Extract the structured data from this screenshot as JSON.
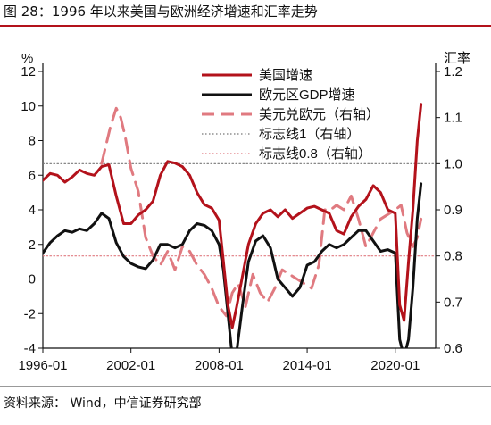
{
  "figure": {
    "title": "图 28：1996 年以来美国与欧洲经济增速和汇率走势",
    "source": "资料来源：  Wind，中信证券研究部"
  },
  "colors": {
    "us_growth": "#b3121b",
    "euro_gdp": "#111111",
    "usd_eur": "#e07a80",
    "ref1": "#777777",
    "ref08": "#e07a80",
    "axis": "#111111"
  },
  "chart_data": {
    "type": "line",
    "ylabel_left": "%",
    "ylabel_right": "汇率",
    "ylim_left": [
      -4,
      12
    ],
    "ylim_right": [
      0.6,
      1.2
    ],
    "yticks_left": [
      "-4",
      "-2",
      "0",
      "2",
      "4",
      "6",
      "8",
      "10",
      "12"
    ],
    "yticks_right": [
      "0.6",
      "0.7",
      "0.8",
      "0.9",
      "1.0",
      "1.1",
      "1.2"
    ],
    "xlim": [
      1996.0,
      2022.75
    ],
    "xticks": [
      {
        "x": 1996.0,
        "label": "1996-01"
      },
      {
        "x": 2002.0,
        "label": "2002-01"
      },
      {
        "x": 2008.0,
        "label": "2008-01"
      },
      {
        "x": 2014.0,
        "label": "2014-01"
      },
      {
        "x": 2020.0,
        "label": "2020-01"
      }
    ],
    "legend_position": "top-right",
    "series": [
      {
        "name": "美国增速",
        "axis": "left",
        "style": "solid-thick",
        "color_key": "us_growth",
        "points": [
          [
            1996.0,
            5.7
          ],
          [
            1996.5,
            6.1
          ],
          [
            1997.0,
            6.0
          ],
          [
            1997.5,
            5.6
          ],
          [
            1998.0,
            5.9
          ],
          [
            1998.5,
            6.3
          ],
          [
            1999.0,
            6.1
          ],
          [
            1999.5,
            6.0
          ],
          [
            2000.0,
            6.5
          ],
          [
            2000.5,
            6.6
          ],
          [
            2001.0,
            4.8
          ],
          [
            2001.5,
            3.2
          ],
          [
            2002.0,
            3.2
          ],
          [
            2002.5,
            3.7
          ],
          [
            2003.0,
            4.0
          ],
          [
            2003.5,
            4.5
          ],
          [
            2004.0,
            6.0
          ],
          [
            2004.5,
            6.8
          ],
          [
            2005.0,
            6.7
          ],
          [
            2005.5,
            6.5
          ],
          [
            2006.0,
            6.0
          ],
          [
            2006.5,
            5.0
          ],
          [
            2007.0,
            4.3
          ],
          [
            2007.5,
            4.1
          ],
          [
            2008.0,
            3.4
          ],
          [
            2008.3,
            1.0
          ],
          [
            2008.6,
            -1.5
          ],
          [
            2008.9,
            -2.8
          ],
          [
            2009.2,
            -1.6
          ],
          [
            2009.6,
            0.2
          ],
          [
            2010.0,
            2.0
          ],
          [
            2010.5,
            3.2
          ],
          [
            2011.0,
            3.8
          ],
          [
            2011.5,
            4.0
          ],
          [
            2012.0,
            3.6
          ],
          [
            2012.5,
            4.0
          ],
          [
            2013.0,
            3.5
          ],
          [
            2013.5,
            3.8
          ],
          [
            2014.0,
            4.1
          ],
          [
            2014.5,
            4.2
          ],
          [
            2015.0,
            4.0
          ],
          [
            2015.5,
            3.8
          ],
          [
            2016.0,
            2.8
          ],
          [
            2016.5,
            2.6
          ],
          [
            2017.0,
            3.6
          ],
          [
            2017.5,
            4.2
          ],
          [
            2018.0,
            4.6
          ],
          [
            2018.5,
            5.4
          ],
          [
            2019.0,
            5.0
          ],
          [
            2019.5,
            4.0
          ],
          [
            2020.0,
            3.8
          ],
          [
            2020.3,
            -1.5
          ],
          [
            2020.6,
            -2.4
          ],
          [
            2020.9,
            1.0
          ],
          [
            2021.2,
            4.0
          ],
          [
            2021.5,
            8.0
          ],
          [
            2021.75,
            10.1
          ]
        ]
      },
      {
        "name": "欧元区GDP增速",
        "axis": "left",
        "style": "solid-thick",
        "color_key": "euro_gdp",
        "points": [
          [
            1996.0,
            1.5
          ],
          [
            1996.5,
            2.1
          ],
          [
            1997.0,
            2.5
          ],
          [
            1997.5,
            2.8
          ],
          [
            1998.0,
            2.7
          ],
          [
            1998.5,
            2.9
          ],
          [
            1999.0,
            2.8
          ],
          [
            1999.5,
            3.2
          ],
          [
            2000.0,
            3.8
          ],
          [
            2000.5,
            3.5
          ],
          [
            2001.0,
            2.1
          ],
          [
            2001.5,
            1.3
          ],
          [
            2002.0,
            0.9
          ],
          [
            2002.5,
            0.7
          ],
          [
            2003.0,
            0.6
          ],
          [
            2003.5,
            1.1
          ],
          [
            2004.0,
            2.0
          ],
          [
            2004.5,
            2.0
          ],
          [
            2005.0,
            1.8
          ],
          [
            2005.5,
            2.0
          ],
          [
            2006.0,
            2.8
          ],
          [
            2006.5,
            3.2
          ],
          [
            2007.0,
            3.1
          ],
          [
            2007.5,
            2.8
          ],
          [
            2008.0,
            2.0
          ],
          [
            2008.3,
            0.5
          ],
          [
            2008.6,
            -2.0
          ],
          [
            2008.9,
            -4.5
          ],
          [
            2009.2,
            -4.2
          ],
          [
            2009.6,
            -1.5
          ],
          [
            2010.0,
            1.0
          ],
          [
            2010.5,
            2.2
          ],
          [
            2011.0,
            2.5
          ],
          [
            2011.5,
            1.8
          ],
          [
            2012.0,
            0.0
          ],
          [
            2012.5,
            -0.5
          ],
          [
            2013.0,
            -1.0
          ],
          [
            2013.5,
            -0.5
          ],
          [
            2014.0,
            0.8
          ],
          [
            2014.5,
            1.0
          ],
          [
            2015.0,
            1.6
          ],
          [
            2015.5,
            2.0
          ],
          [
            2016.0,
            1.8
          ],
          [
            2016.5,
            2.0
          ],
          [
            2017.0,
            2.4
          ],
          [
            2017.5,
            2.8
          ],
          [
            2018.0,
            2.8
          ],
          [
            2018.5,
            2.2
          ],
          [
            2019.0,
            1.6
          ],
          [
            2019.5,
            1.7
          ],
          [
            2020.0,
            1.5
          ],
          [
            2020.3,
            -3.5
          ],
          [
            2020.6,
            -4.5
          ],
          [
            2020.9,
            -3.5
          ],
          [
            2021.2,
            -0.5
          ],
          [
            2021.5,
            3.5
          ],
          [
            2021.75,
            5.5
          ]
        ]
      },
      {
        "name": "美元兑欧元（右轴）",
        "axis": "right",
        "style": "dashed-thick",
        "color_key": "usd_eur",
        "points": [
          [
            2000.0,
            1.0
          ],
          [
            2000.6,
            1.08
          ],
          [
            2001.0,
            1.12
          ],
          [
            2001.3,
            1.1
          ],
          [
            2001.6,
            1.06
          ],
          [
            2002.0,
            0.99
          ],
          [
            2002.5,
            0.94
          ],
          [
            2003.0,
            0.84
          ],
          [
            2003.5,
            0.8
          ],
          [
            2004.0,
            0.78
          ],
          [
            2004.5,
            0.81
          ],
          [
            2005.0,
            0.77
          ],
          [
            2005.5,
            0.82
          ],
          [
            2006.0,
            0.81
          ],
          [
            2006.5,
            0.78
          ],
          [
            2007.0,
            0.76
          ],
          [
            2007.5,
            0.73
          ],
          [
            2008.0,
            0.69
          ],
          [
            2008.5,
            0.67
          ],
          [
            2008.9,
            0.72
          ],
          [
            2009.3,
            0.74
          ],
          [
            2009.8,
            0.69
          ],
          [
            2010.3,
            0.76
          ],
          [
            2010.8,
            0.72
          ],
          [
            2011.3,
            0.7
          ],
          [
            2011.8,
            0.73
          ],
          [
            2012.3,
            0.77
          ],
          [
            2012.8,
            0.76
          ],
          [
            2013.3,
            0.75
          ],
          [
            2013.8,
            0.74
          ],
          [
            2014.3,
            0.73
          ],
          [
            2014.8,
            0.78
          ],
          [
            2015.2,
            0.9
          ],
          [
            2015.6,
            0.9
          ],
          [
            2016.0,
            0.91
          ],
          [
            2016.5,
            0.9
          ],
          [
            2017.0,
            0.93
          ],
          [
            2017.5,
            0.88
          ],
          [
            2018.0,
            0.82
          ],
          [
            2018.5,
            0.85
          ],
          [
            2019.0,
            0.88
          ],
          [
            2019.5,
            0.89
          ],
          [
            2020.0,
            0.9
          ],
          [
            2020.4,
            0.91
          ],
          [
            2020.8,
            0.85
          ],
          [
            2021.2,
            0.82
          ],
          [
            2021.5,
            0.84
          ],
          [
            2021.75,
            0.88
          ]
        ]
      },
      {
        "name": "标志线1（右轴）",
        "axis": "right",
        "style": "dotted",
        "color_key": "ref1",
        "points": [
          [
            1996.0,
            1.0
          ],
          [
            2022.75,
            1.0
          ]
        ]
      },
      {
        "name": "标志线0.8（右轴）",
        "axis": "right",
        "style": "dotted",
        "color_key": "ref08",
        "points": [
          [
            1996.0,
            0.8
          ],
          [
            2022.75,
            0.8
          ]
        ]
      }
    ]
  }
}
